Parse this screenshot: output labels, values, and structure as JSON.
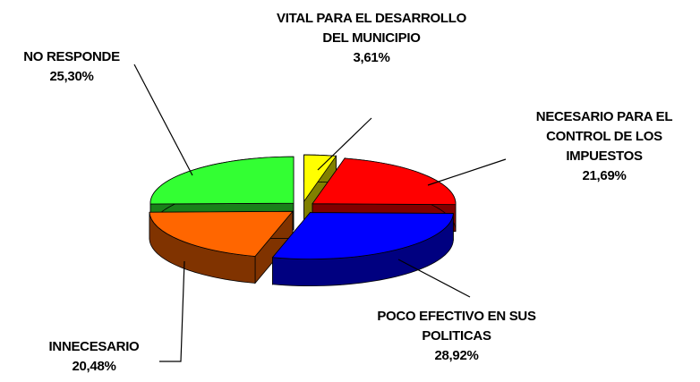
{
  "chart_data": {
    "type": "pie3d",
    "categories": [
      "VITAL PARA EL DESARROLLO DEL MUNICIPIO",
      "NECESARIO PARA EL CONTROL DE LOS IMPUESTOS",
      "POCO EFECTIVO EN SUS POLITICAS",
      "INNECESARIO",
      "NO RESPONDE"
    ],
    "values": [
      3.61,
      21.69,
      28.92,
      20.48,
      25.3
    ],
    "value_labels": [
      "3,61%",
      "21,69%",
      "28,92%",
      "20,48%",
      "25,30%"
    ],
    "colors": [
      "#ffff00",
      "#ff0000",
      "#0000ff",
      "#ff6600",
      "#33ff33"
    ]
  }
}
